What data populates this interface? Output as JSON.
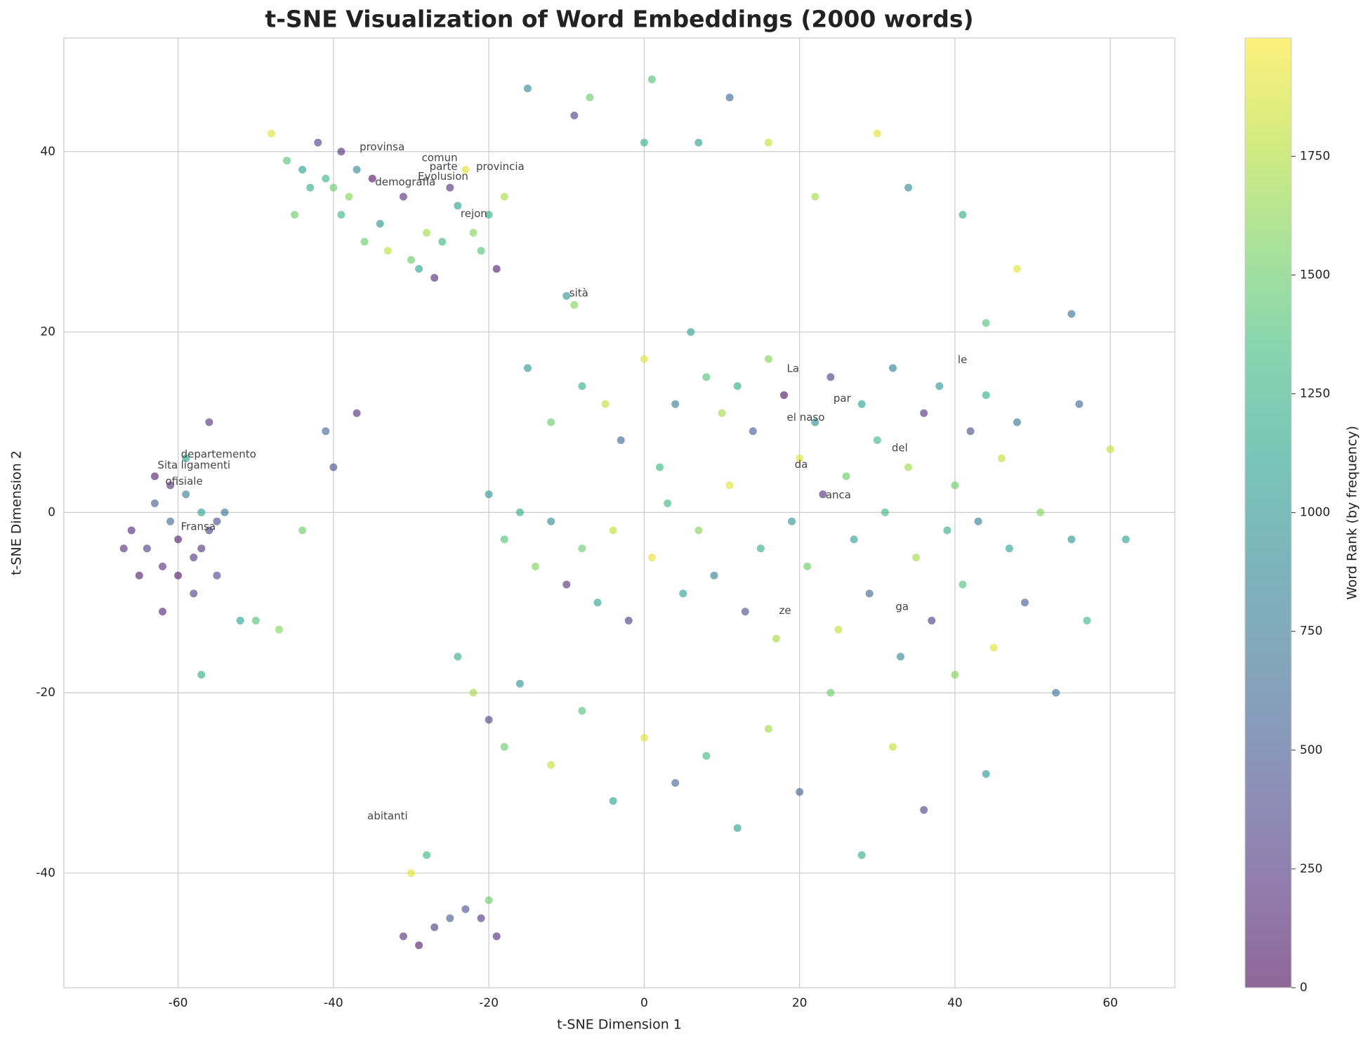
{
  "chart_data": {
    "type": "scatter",
    "title": "t-SNE Visualization of Word Embeddings (2000 words)",
    "xlabel": "t-SNE Dimension 1",
    "ylabel": "t-SNE Dimension 2",
    "colorbar_label": "Word Rank (by frequency)",
    "colormap": "viridis",
    "alpha": 0.6,
    "grid": true,
    "xlim": [
      -74.7,
      68.3
    ],
    "ylim": [
      -52.7,
      52.6
    ],
    "xticks": [
      -60,
      -40,
      -20,
      0,
      20,
      40,
      60
    ],
    "yticks": [
      -40,
      -20,
      0,
      20,
      40
    ],
    "clim": [
      0,
      1999
    ],
    "cticks": [
      0,
      250,
      500,
      750,
      1000,
      1250,
      1500,
      1750
    ],
    "x": [
      -46,
      -44,
      -42,
      -41,
      -40,
      -39,
      -38,
      -37,
      -45,
      -43,
      -34,
      -33,
      -31,
      -30,
      -29,
      -28,
      -27,
      -26,
      -24,
      -22,
      -21,
      -20,
      -19,
      -18,
      -23,
      -25,
      -36,
      -48,
      -39,
      -35,
      -66,
      -64,
      -63,
      -62,
      -61,
      -60,
      -59,
      -58,
      -57,
      -56,
      -55,
      -54,
      -65,
      -67,
      -62,
      -60,
      -58,
      -63,
      -61,
      -59,
      -57,
      -56,
      -55,
      -50,
      -47,
      -52,
      -57,
      -44,
      -41,
      -40,
      -15,
      -12,
      -8,
      -5,
      -3,
      0,
      2,
      4,
      6,
      8,
      10,
      12,
      14,
      16,
      18,
      20,
      22,
      24,
      26,
      28,
      30,
      32,
      34,
      36,
      38,
      40,
      42,
      44,
      46,
      48,
      -20,
      -18,
      -16,
      -14,
      -12,
      -10,
      -8,
      -6,
      -4,
      -2,
      1,
      3,
      5,
      7,
      9,
      11,
      13,
      15,
      17,
      19,
      21,
      23,
      25,
      27,
      29,
      31,
      33,
      35,
      37,
      39,
      41,
      43,
      45,
      47,
      49,
      51,
      53,
      55,
      57,
      62,
      -24,
      -22,
      -20,
      -18,
      -16,
      -12,
      -8,
      -4,
      0,
      4,
      8,
      12,
      16,
      20,
      24,
      28,
      32,
      36,
      40,
      44,
      -31,
      -29,
      -27,
      -25,
      -23,
      -21,
      -19,
      -30,
      -28,
      -20,
      -15,
      -9,
      -7,
      0,
      1,
      7,
      11,
      16,
      30,
      34,
      55,
      56,
      44,
      48,
      60,
      41,
      -10,
      -9,
      -37,
      22
    ],
    "y": [
      39,
      38,
      41,
      37,
      36,
      40,
      35,
      38,
      33,
      36,
      32,
      29,
      35,
      28,
      27,
      31,
      26,
      30,
      34,
      31,
      29,
      33,
      27,
      35,
      38,
      36,
      30,
      42,
      33,
      37,
      -2,
      -4,
      1,
      -6,
      -1,
      -3,
      2,
      -5,
      0,
      -2,
      -1,
      0,
      -7,
      -4,
      -11,
      -7,
      -9,
      4,
      3,
      6,
      -18,
      10,
      -7,
      -12,
      -13,
      -12,
      -4,
      -2,
      9,
      5,
      16,
      10,
      14,
      12,
      8,
      17,
      5,
      12,
      20,
      15,
      11,
      14,
      9,
      17,
      13,
      6,
      10,
      15,
      4,
      12,
      8,
      16,
      5,
      11,
      14,
      3,
      9,
      13,
      6,
      10,
      2,
      -3,
      0,
      -6,
      -1,
      -8,
      -4,
      -10,
      -2,
      -12,
      -5,
      1,
      -9,
      -2,
      -7,
      3,
      -11,
      -4,
      -14,
      -1,
      -6,
      2,
      -13,
      -3,
      -9,
      0,
      -16,
      -5,
      -12,
      -2,
      -8,
      -1,
      -15,
      -4,
      -10,
      0,
      -20,
      -3,
      -12,
      -3,
      -16,
      -20,
      -23,
      -26,
      -19,
      -28,
      -22,
      -32,
      -25,
      -30,
      -27,
      -35,
      -24,
      -31,
      -20,
      -38,
      -26,
      -33,
      -18,
      -29,
      -47,
      -48,
      -46,
      -45,
      -44,
      -45,
      -47,
      -40,
      -38,
      -43,
      47,
      44,
      46,
      41,
      48,
      41,
      46,
      41,
      42,
      36,
      22,
      12,
      21,
      27,
      7,
      33,
      24,
      23,
      11,
      35
    ],
    "rank": [
      1400,
      1100,
      300,
      1300,
      1500,
      200,
      1600,
      900,
      1500,
      1200,
      1000,
      1800,
      200,
      1500,
      1100,
      1700,
      150,
      1300,
      1100,
      1600,
      1400,
      1200,
      100,
      1700,
      1900,
      200,
      1500,
      1900,
      1300,
      50,
      150,
      300,
      500,
      200,
      600,
      100,
      800,
      250,
      1100,
      350,
      400,
      700,
      100,
      200,
      150,
      50,
      300,
      100,
      200,
      1100,
      1200,
      200,
      350,
      1400,
      1600,
      1100,
      250,
      1500,
      600,
      400,
      1000,
      1500,
      1200,
      1800,
      600,
      1900,
      1300,
      800,
      1100,
      1400,
      1700,
      1200,
      500,
      1600,
      50,
      1900,
      900,
      300,
      1500,
      1100,
      1300,
      800,
      1700,
      200,
      1000,
      1500,
      400,
      1200,
      1800,
      700,
      1000,
      1400,
      1200,
      1600,
      900,
      200,
      1500,
      1100,
      1800,
      300,
      1900,
      1300,
      1100,
      1600,
      800,
      1900,
      400,
      1200,
      1700,
      1000,
      1500,
      200,
      1800,
      1100,
      600,
      1300,
      900,
      1700,
      300,
      1200,
      1400,
      800,
      1900,
      1100,
      500,
      1600,
      700,
      1000,
      1300,
      1100,
      1200,
      1700,
      300,
      1500,
      1000,
      1800,
      1400,
      1100,
      1900,
      600,
      1300,
      1100,
      1700,
      500,
      1500,
      1200,
      1800,
      300,
      1600,
      1000,
      200,
      100,
      300,
      500,
      400,
      250,
      150,
      1900,
      1300,
      1500,
      900,
      300,
      1500,
      1200,
      1400,
      1100,
      600,
      1800,
      1900,
      900,
      700,
      600,
      1400,
      1900,
      1800,
      1200,
      1000,
      1600,
      200,
      1700
    ],
    "annotations": [
      {
        "text": "provinsa",
        "x": -37,
        "y": 40.5
      },
      {
        "text": "comun",
        "x": -29,
        "y": 39.3
      },
      {
        "text": "parte",
        "x": -28,
        "y": 38.3
      },
      {
        "text": "provincia",
        "x": -22,
        "y": 38.3
      },
      {
        "text": "Evolusion",
        "x": -29.5,
        "y": 37.2
      },
      {
        "text": "demografia",
        "x": -35,
        "y": 36.6
      },
      {
        "text": "rejon",
        "x": -24,
        "y": 33.1
      },
      {
        "text": "sità",
        "x": -10,
        "y": 24.3
      },
      {
        "text": "departemento",
        "x": -60,
        "y": 6.4
      },
      {
        "text": "Sita",
        "x": -63,
        "y": 5.2
      },
      {
        "text": "ligamenti",
        "x": -60,
        "y": 5.2
      },
      {
        "text": "ofisiale",
        "x": -62,
        "y": 3.4
      },
      {
        "text": "Fransa",
        "x": -60,
        "y": -1.6
      },
      {
        "text": "abitanti",
        "x": -36,
        "y": -33.7
      },
      {
        "text": "La",
        "x": 18,
        "y": 15.9
      },
      {
        "text": "par",
        "x": 24,
        "y": 12.6
      },
      {
        "text": "le",
        "x": 40,
        "y": 16.9
      },
      {
        "text": "del",
        "x": 31.5,
        "y": 7.1
      },
      {
        "text": "el naso",
        "x": 18,
        "y": 10.5
      },
      {
        "text": "da",
        "x": 19,
        "y": 5.3
      },
      {
        "text": "anca",
        "x": 23,
        "y": 1.9
      },
      {
        "text": "ze",
        "x": 17,
        "y": -10.9
      },
      {
        "text": "ga",
        "x": 32,
        "y": -10.5
      }
    ]
  }
}
